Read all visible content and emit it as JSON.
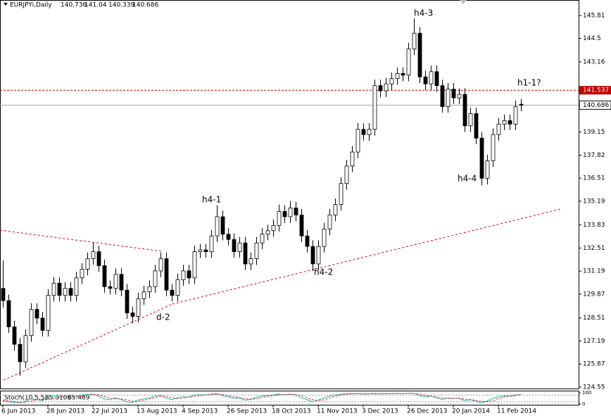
{
  "chart_data": [
    {
      "type": "candlestick",
      "title": "EURJPYi,Daily",
      "categories": [
        "6 Jun 2013",
        null,
        null,
        null,
        null,
        null,
        null,
        null,
        "28 Jun 2013",
        null,
        null,
        null,
        null,
        null,
        null,
        null,
        "22 Jul 2013",
        null,
        null,
        null,
        null,
        null,
        null,
        null,
        "13 Aug 2013",
        null,
        null,
        null,
        null,
        null,
        null,
        null,
        "4 Sep 2013",
        null,
        null,
        null,
        null,
        null,
        null,
        null,
        "26 Sep 2013",
        null,
        null,
        null,
        null,
        null,
        null,
        null,
        "18 Oct 2013",
        null,
        null,
        null,
        null,
        null,
        null,
        null,
        "11 Nov 2013",
        null,
        null,
        null,
        null,
        null,
        null,
        null,
        "3 Dec 2013",
        null,
        null,
        null,
        null,
        null,
        null,
        null,
        "26 Dec 2013",
        null,
        null,
        null,
        null,
        null,
        null,
        null,
        "20 Jan 2014",
        null,
        null,
        null,
        null,
        null,
        null,
        null,
        "11 Feb 2014",
        null,
        null,
        null,
        null
      ],
      "ohlc": [
        [
          130.2,
          131.8,
          129.1,
          129.5
        ],
        [
          129.5,
          129.85,
          127.65,
          128.0
        ],
        [
          128.0,
          128.35,
          126.65,
          127.0
        ],
        [
          127.0,
          127.35,
          125.2,
          126.0
        ],
        [
          126.0,
          127.85,
          125.65,
          127.5
        ],
        [
          127.5,
          129.35,
          127.15,
          129.0
        ],
        [
          129.0,
          129.35,
          128.15,
          128.5
        ],
        [
          128.5,
          128.85,
          127.45,
          127.8
        ],
        [
          127.8,
          130.15,
          127.45,
          129.8
        ],
        [
          129.8,
          130.85,
          129.45,
          130.5
        ],
        [
          130.5,
          130.85,
          129.45,
          129.8
        ],
        [
          129.8,
          130.55,
          129.45,
          130.2
        ],
        [
          130.2,
          130.55,
          129.45,
          129.8
        ],
        [
          129.8,
          131.15,
          129.45,
          130.8
        ],
        [
          130.8,
          131.65,
          130.45,
          131.3
        ],
        [
          131.3,
          132.25,
          130.95,
          131.9
        ],
        [
          131.9,
          132.8,
          131.55,
          132.3
        ],
        [
          132.3,
          132.65,
          131.15,
          131.5
        ],
        [
          131.5,
          131.85,
          129.95,
          130.3
        ],
        [
          130.3,
          130.65,
          129.85,
          130.2
        ],
        [
          130.2,
          131.35,
          129.85,
          131.0
        ],
        [
          131.0,
          131.35,
          129.75,
          130.1
        ],
        [
          130.1,
          130.45,
          128.45,
          128.8
        ],
        [
          128.8,
          129.15,
          128.2,
          128.6
        ],
        [
          128.6,
          129.95,
          128.25,
          129.6
        ],
        [
          129.6,
          130.35,
          129.25,
          130.0
        ],
        [
          130.0,
          130.65,
          129.65,
          130.3
        ],
        [
          130.3,
          131.55,
          129.95,
          131.2
        ],
        [
          131.2,
          132.25,
          130.85,
          131.9
        ],
        [
          131.9,
          132.25,
          129.75,
          130.1
        ],
        [
          130.1,
          130.45,
          129.45,
          129.8
        ],
        [
          129.8,
          131.05,
          129.45,
          130.7
        ],
        [
          130.7,
          131.55,
          130.35,
          131.2
        ],
        [
          131.2,
          131.55,
          130.45,
          130.8
        ],
        [
          130.8,
          132.65,
          130.45,
          132.3
        ],
        [
          132.3,
          132.75,
          131.95,
          132.4
        ],
        [
          132.4,
          132.75,
          131.95,
          132.3
        ],
        [
          132.3,
          133.55,
          131.95,
          133.2
        ],
        [
          133.2,
          134.96,
          132.85,
          134.3
        ],
        [
          134.3,
          134.65,
          132.95,
          133.3
        ],
        [
          133.3,
          133.65,
          132.65,
          133.0
        ],
        [
          133.0,
          133.35,
          131.95,
          132.3
        ],
        [
          132.3,
          133.15,
          131.95,
          132.8
        ],
        [
          132.8,
          133.15,
          131.25,
          131.6
        ],
        [
          131.6,
          132.25,
          131.25,
          131.9
        ],
        [
          131.9,
          133.15,
          131.55,
          132.8
        ],
        [
          132.8,
          133.65,
          132.45,
          133.3
        ],
        [
          133.3,
          133.85,
          132.95,
          133.5
        ],
        [
          133.5,
          134.15,
          133.15,
          133.8
        ],
        [
          133.8,
          135.0,
          133.45,
          134.6
        ],
        [
          134.6,
          134.95,
          133.95,
          134.3
        ],
        [
          134.3,
          135.2,
          133.95,
          134.8
        ],
        [
          134.8,
          135.15,
          134.05,
          134.4
        ],
        [
          134.4,
          134.75,
          132.85,
          133.2
        ],
        [
          133.2,
          133.55,
          132.25,
          132.6
        ],
        [
          132.6,
          132.95,
          131.2,
          131.6
        ],
        [
          131.6,
          132.95,
          131.25,
          132.6
        ],
        [
          132.6,
          133.95,
          132.25,
          133.6
        ],
        [
          133.6,
          134.75,
          133.25,
          134.4
        ],
        [
          134.4,
          135.35,
          134.05,
          135.0
        ],
        [
          135.0,
          136.55,
          134.65,
          136.2
        ],
        [
          136.2,
          137.55,
          135.85,
          137.2
        ],
        [
          137.2,
          138.35,
          136.85,
          138.0
        ],
        [
          138.0,
          139.65,
          137.65,
          139.3
        ],
        [
          139.3,
          139.65,
          138.65,
          139.0
        ],
        [
          139.0,
          139.65,
          138.65,
          139.3
        ],
        [
          139.3,
          142.15,
          138.95,
          141.8
        ],
        [
          141.8,
          142.15,
          141.15,
          141.5
        ],
        [
          141.5,
          142.25,
          141.15,
          141.9
        ],
        [
          141.9,
          142.55,
          141.55,
          142.2
        ],
        [
          142.2,
          142.85,
          141.85,
          142.5
        ],
        [
          142.5,
          142.85,
          142.05,
          142.4
        ],
        [
          142.4,
          144.25,
          142.05,
          143.9
        ],
        [
          143.9,
          145.65,
          143.55,
          144.8
        ],
        [
          144.8,
          145.15,
          141.95,
          142.3
        ],
        [
          142.3,
          142.65,
          141.55,
          141.9
        ],
        [
          141.9,
          142.95,
          141.55,
          142.6
        ],
        [
          142.6,
          142.95,
          141.45,
          141.8
        ],
        [
          141.8,
          142.15,
          140.25,
          140.6
        ],
        [
          140.6,
          141.95,
          140.25,
          141.6
        ],
        [
          141.6,
          141.95,
          140.75,
          141.1
        ],
        [
          141.1,
          141.65,
          140.75,
          141.3
        ],
        [
          141.3,
          141.65,
          139.15,
          139.5
        ],
        [
          139.5,
          140.55,
          139.15,
          140.2
        ],
        [
          140.2,
          140.55,
          138.45,
          138.8
        ],
        [
          138.8,
          139.15,
          136.1,
          136.5
        ],
        [
          136.5,
          137.85,
          136.15,
          137.5
        ],
        [
          137.5,
          139.35,
          137.15,
          139.0
        ],
        [
          139.0,
          139.95,
          138.65,
          139.6
        ],
        [
          139.6,
          140.15,
          139.25,
          139.8
        ],
        [
          139.8,
          140.15,
          139.25,
          139.6
        ],
        [
          139.6,
          140.95,
          139.25,
          140.6
        ],
        [
          140.736,
          141.04,
          140.339,
          140.686
        ]
      ],
      "ylim": [
        124.47,
        146.7
      ],
      "yticks": [
        145.81,
        144.5,
        143.16,
        139.15,
        137.82,
        136.51,
        135.19,
        133.83,
        132.51,
        131.19,
        129.87,
        128.51,
        127.19,
        125.87,
        124.55
      ],
      "hline": 141.537,
      "hline_color": "#c00000",
      "up_color": "#ffffff",
      "down_color": "#000000",
      "annotations": [
        "h4-3",
        "h1-1?",
        "h4-4",
        "h4-1",
        "h4-2",
        "d-2"
      ]
    },
    {
      "type": "line",
      "title": "Stoch(10,5,5)",
      "ylim": [
        0,
        100
      ],
      "yticks": [
        0,
        100
      ],
      "levels": [
        20,
        80
      ],
      "series": [
        {
          "color": "#20b2aa",
          "values": [
            30,
            20,
            15,
            10,
            25,
            45,
            40,
            30,
            55,
            70,
            60,
            65,
            55,
            70,
            80,
            85,
            88,
            70,
            45,
            40,
            55,
            40,
            20,
            15,
            35,
            45,
            55,
            70,
            80,
            50,
            40,
            55,
            65,
            60,
            80,
            82,
            80,
            88,
            92,
            75,
            65,
            50,
            55,
            35,
            40,
            60,
            70,
            75,
            80,
            88,
            82,
            88,
            80,
            55,
            40,
            20,
            35,
            55,
            70,
            80,
            88,
            90,
            92,
            93,
            88,
            90,
            95,
            90,
            92,
            93,
            94,
            92,
            95,
            96,
            75,
            65,
            70,
            55,
            40,
            55,
            50,
            52,
            30,
            38,
            25,
            10,
            25,
            50,
            65,
            72,
            70,
            80,
            85.3105
          ]
        },
        {
          "color": "#e03030",
          "values": [
            35,
            28,
            22,
            15,
            17,
            27,
            37,
            38,
            42,
            52,
            62,
            65,
            60,
            63,
            68,
            78,
            84,
            81,
            68,
            52,
            47,
            45,
            38,
            25,
            23,
            32,
            45,
            57,
            68,
            67,
            57,
            48,
            53,
            60,
            68,
            74,
            81,
            83,
            87,
            85,
            77,
            63,
            57,
            47,
            43,
            45,
            57,
            68,
            75,
            81,
            83,
            86,
            83,
            74,
            58,
            38,
            32,
            37,
            53,
            68,
            79,
            86,
            90,
            92,
            91,
            90,
            91,
            92,
            92,
            92,
            93,
            93,
            94,
            94,
            89,
            79,
            70,
            63,
            55,
            50,
            48,
            52,
            44,
            40,
            31,
            24,
            20,
            28,
            47,
            62,
            69,
            74,
            85.469
          ]
        }
      ]
    }
  ]
}
